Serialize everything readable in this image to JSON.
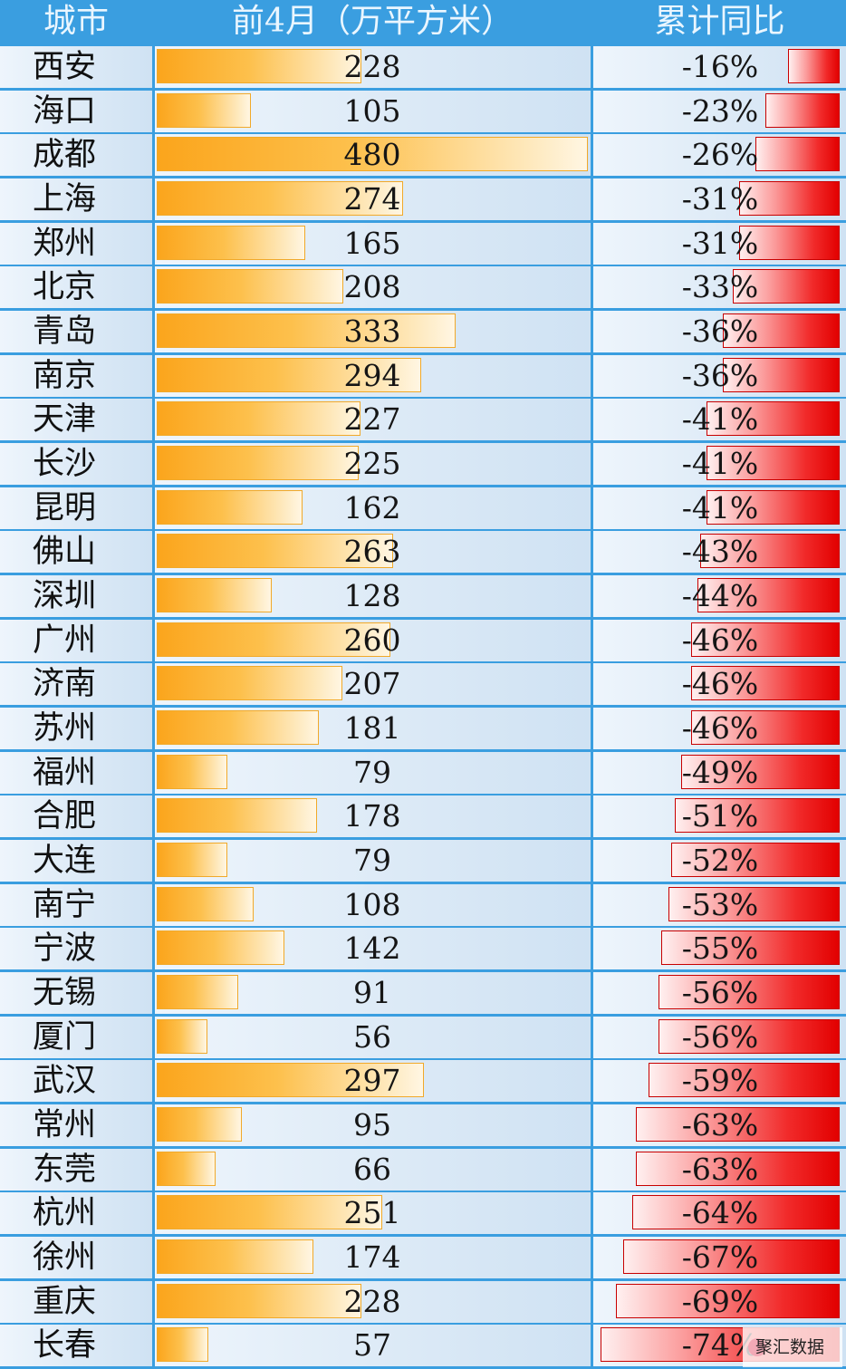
{
  "chart_data": {
    "type": "table",
    "headers": [
      "城市",
      "前4月（万平方米）",
      "累计同比"
    ],
    "bar_max": 480,
    "yoy_max_abs": 75,
    "rows": [
      {
        "city": "西安",
        "area": 228,
        "yoy": "-16%",
        "yoy_value": -16
      },
      {
        "city": "海口",
        "area": 105,
        "yoy": "-23%",
        "yoy_value": -23
      },
      {
        "city": "成都",
        "area": 480,
        "yoy": "-26%",
        "yoy_value": -26
      },
      {
        "city": "上海",
        "area": 274,
        "yoy": "-31%",
        "yoy_value": -31
      },
      {
        "city": "郑州",
        "area": 165,
        "yoy": "-31%",
        "yoy_value": -31
      },
      {
        "city": "北京",
        "area": 208,
        "yoy": "-33%",
        "yoy_value": -33
      },
      {
        "city": "青岛",
        "area": 333,
        "yoy": "-36%",
        "yoy_value": -36
      },
      {
        "city": "南京",
        "area": 294,
        "yoy": "-36%",
        "yoy_value": -36
      },
      {
        "city": "天津",
        "area": 227,
        "yoy": "-41%",
        "yoy_value": -41
      },
      {
        "city": "长沙",
        "area": 225,
        "yoy": "-41%",
        "yoy_value": -41
      },
      {
        "city": "昆明",
        "area": 162,
        "yoy": "-41%",
        "yoy_value": -41
      },
      {
        "city": "佛山",
        "area": 263,
        "yoy": "-43%",
        "yoy_value": -43
      },
      {
        "city": "深圳",
        "area": 128,
        "yoy": "-44%",
        "yoy_value": -44
      },
      {
        "city": "广州",
        "area": 260,
        "yoy": "-46%",
        "yoy_value": -46
      },
      {
        "city": "济南",
        "area": 207,
        "yoy": "-46%",
        "yoy_value": -46
      },
      {
        "city": "苏州",
        "area": 181,
        "yoy": "-46%",
        "yoy_value": -46
      },
      {
        "city": "福州",
        "area": 79,
        "yoy": "-49%",
        "yoy_value": -49
      },
      {
        "city": "合肥",
        "area": 178,
        "yoy": "-51%",
        "yoy_value": -51
      },
      {
        "city": "大连",
        "area": 79,
        "yoy": "-52%",
        "yoy_value": -52
      },
      {
        "city": "南宁",
        "area": 108,
        "yoy": "-53%",
        "yoy_value": -53
      },
      {
        "city": "宁波",
        "area": 142,
        "yoy": "-55%",
        "yoy_value": -55
      },
      {
        "city": "无锡",
        "area": 91,
        "yoy": "-56%",
        "yoy_value": -56
      },
      {
        "city": "厦门",
        "area": 56,
        "yoy": "-56%",
        "yoy_value": -56
      },
      {
        "city": "武汉",
        "area": 297,
        "yoy": "-59%",
        "yoy_value": -59
      },
      {
        "city": "常州",
        "area": 95,
        "yoy": "-63%",
        "yoy_value": -63
      },
      {
        "city": "东莞",
        "area": 66,
        "yoy": "-63%",
        "yoy_value": -63
      },
      {
        "city": "杭州",
        "area": 251,
        "yoy": "-64%",
        "yoy_value": -64
      },
      {
        "city": "徐州",
        "area": 174,
        "yoy": "-67%",
        "yoy_value": -67
      },
      {
        "city": "重庆",
        "area": 228,
        "yoy": "-69%",
        "yoy_value": -69
      },
      {
        "city": "长春",
        "area": 57,
        "yoy": "-74%",
        "yoy_value": -74
      }
    ]
  },
  "colors": {
    "header_bg": "#3a9ee0",
    "area_bar": "#fba51c",
    "yoy_bar": "#e20000"
  },
  "watermark": {
    "text": "聚汇数据"
  }
}
